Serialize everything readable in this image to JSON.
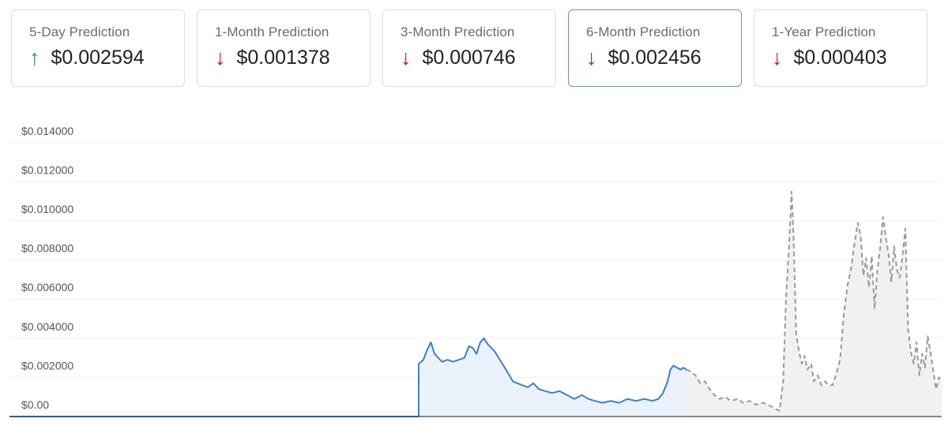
{
  "cards": [
    {
      "label": "5-Day Prediction",
      "value": "$0.002594",
      "direction": "up",
      "arrow": "↑"
    },
    {
      "label": "1-Month Prediction",
      "value": "$0.001378",
      "direction": "down",
      "arrow": "↓"
    },
    {
      "label": "3-Month Prediction",
      "value": "$0.000746",
      "direction": "down",
      "arrow": "↓"
    },
    {
      "label": "6-Month Prediction",
      "value": "$0.002456",
      "direction": "down",
      "arrow": "↓"
    },
    {
      "label": "1-Year Prediction",
      "value": "$0.000403",
      "direction": "down",
      "arrow": "↓"
    }
  ],
  "selected_card": 3,
  "colors": {
    "up": "#2a9d3b",
    "down": "#c8102e",
    "historical_line": "#3f7ec7",
    "historical_fill": "#eaf3fc",
    "prediction_line": "#9a9a9a",
    "prediction_fill": "#f1f1f1"
  },
  "chart_data": {
    "type": "area",
    "ylim": [
      0,
      0.015
    ],
    "yticks": [
      {
        "value": 0,
        "label": "$0.00"
      },
      {
        "value": 0.002,
        "label": "$0.002000"
      },
      {
        "value": 0.004,
        "label": "$0.004000"
      },
      {
        "value": 0.006,
        "label": "$0.006000"
      },
      {
        "value": 0.008,
        "label": "$0.008000"
      },
      {
        "value": 0.01,
        "label": "$0.010000"
      },
      {
        "value": 0.012,
        "label": "$0.012000"
      },
      {
        "value": 0.014,
        "label": "$0.014000"
      }
    ],
    "grid": true,
    "xlim": [
      0,
      100
    ],
    "series": [
      {
        "style": "solid",
        "points": [
          [
            0,
            0
          ],
          [
            43.9,
            0
          ],
          [
            43.9,
            0.0027
          ],
          [
            44.4,
            0.0029
          ],
          [
            44.8,
            0.0034
          ],
          [
            45.2,
            0.0038
          ],
          [
            45.6,
            0.0032
          ],
          [
            46.0,
            0.003
          ],
          [
            46.4,
            0.0028
          ],
          [
            47.0,
            0.0029
          ],
          [
            47.6,
            0.0028
          ],
          [
            48.2,
            0.0029
          ],
          [
            48.8,
            0.003
          ],
          [
            49.3,
            0.0036
          ],
          [
            49.7,
            0.0035
          ],
          [
            50.1,
            0.0032
          ],
          [
            50.5,
            0.0038
          ],
          [
            50.9,
            0.004
          ],
          [
            51.3,
            0.0037
          ],
          [
            51.7,
            0.0035
          ],
          [
            52.1,
            0.0033
          ],
          [
            52.6,
            0.0029
          ],
          [
            53.0,
            0.0026
          ],
          [
            53.5,
            0.0022
          ],
          [
            54.0,
            0.0018
          ],
          [
            54.5,
            0.0017
          ],
          [
            55.0,
            0.0016
          ],
          [
            55.6,
            0.0015
          ],
          [
            56.2,
            0.0017
          ],
          [
            56.8,
            0.0014
          ],
          [
            57.5,
            0.0013
          ],
          [
            58.2,
            0.0012
          ],
          [
            59.0,
            0.0013
          ],
          [
            59.8,
            0.0011
          ],
          [
            60.6,
            0.0009
          ],
          [
            61.4,
            0.0011
          ],
          [
            62.1,
            0.0009
          ],
          [
            62.8,
            0.0008
          ],
          [
            63.6,
            0.0007
          ],
          [
            64.5,
            0.0008
          ],
          [
            65.4,
            0.0007
          ],
          [
            66.3,
            0.0009
          ],
          [
            67.2,
            0.0008
          ],
          [
            68.1,
            0.0009
          ],
          [
            69.0,
            0.0008
          ],
          [
            69.6,
            0.0009
          ],
          [
            70.1,
            0.0012
          ],
          [
            70.6,
            0.0018
          ],
          [
            70.9,
            0.0024
          ],
          [
            71.2,
            0.0026
          ],
          [
            71.6,
            0.0025
          ],
          [
            72.0,
            0.0024
          ],
          [
            72.3,
            0.0025
          ],
          [
            72.6,
            0.0024
          ]
        ]
      },
      {
        "style": "dashed",
        "points": [
          [
            72.6,
            0.0024
          ],
          [
            73.1,
            0.0023
          ],
          [
            73.6,
            0.0021
          ],
          [
            74.1,
            0.0017
          ],
          [
            74.6,
            0.0018
          ],
          [
            75.1,
            0.0014
          ],
          [
            75.6,
            0.0011
          ],
          [
            76.2,
            0.0009
          ],
          [
            76.8,
            0.001
          ],
          [
            77.4,
            0.0008
          ],
          [
            78.1,
            0.0009
          ],
          [
            78.7,
            0.0007
          ],
          [
            79.4,
            0.0008
          ],
          [
            80.1,
            0.0006
          ],
          [
            80.8,
            0.0007
          ],
          [
            81.4,
            0.0006
          ],
          [
            82.1,
            0.0004
          ],
          [
            82.6,
            0.0003
          ],
          [
            83.0,
            0.0018
          ],
          [
            83.3,
            0.006
          ],
          [
            83.6,
            0.0085
          ],
          [
            83.9,
            0.0115
          ],
          [
            84.1,
            0.0093
          ],
          [
            84.4,
            0.0042
          ],
          [
            84.7,
            0.0033
          ],
          [
            85.0,
            0.0027
          ],
          [
            85.3,
            0.0031
          ],
          [
            85.6,
            0.0024
          ],
          [
            86.0,
            0.0027
          ],
          [
            86.3,
            0.0018
          ],
          [
            86.7,
            0.0021
          ],
          [
            87.1,
            0.0016
          ],
          [
            87.5,
            0.0018
          ],
          [
            87.9,
            0.0016
          ],
          [
            88.3,
            0.0016
          ],
          [
            88.7,
            0.0022
          ],
          [
            89.1,
            0.0029
          ],
          [
            89.5,
            0.0052
          ],
          [
            89.9,
            0.0067
          ],
          [
            90.3,
            0.0076
          ],
          [
            90.6,
            0.0087
          ],
          [
            91.0,
            0.0099
          ],
          [
            91.3,
            0.0093
          ],
          [
            91.6,
            0.0072
          ],
          [
            91.9,
            0.0081
          ],
          [
            92.2,
            0.0066
          ],
          [
            92.5,
            0.0082
          ],
          [
            92.8,
            0.0055
          ],
          [
            93.1,
            0.0075
          ],
          [
            93.4,
            0.0086
          ],
          [
            93.7,
            0.0102
          ],
          [
            94.0,
            0.0092
          ],
          [
            94.3,
            0.0083
          ],
          [
            94.6,
            0.0069
          ],
          [
            94.9,
            0.0087
          ],
          [
            95.2,
            0.0075
          ],
          [
            95.5,
            0.0071
          ],
          [
            95.8,
            0.0082
          ],
          [
            96.1,
            0.0096
          ],
          [
            96.4,
            0.0045
          ],
          [
            96.7,
            0.0033
          ],
          [
            97.0,
            0.0027
          ],
          [
            97.3,
            0.0038
          ],
          [
            97.6,
            0.0021
          ],
          [
            97.9,
            0.0032
          ],
          [
            98.2,
            0.0025
          ],
          [
            98.5,
            0.0041
          ],
          [
            98.8,
            0.0033
          ],
          [
            99.1,
            0.0023
          ],
          [
            99.4,
            0.0014
          ],
          [
            99.7,
            0.002
          ],
          [
            100,
            0.0018
          ]
        ]
      }
    ]
  }
}
